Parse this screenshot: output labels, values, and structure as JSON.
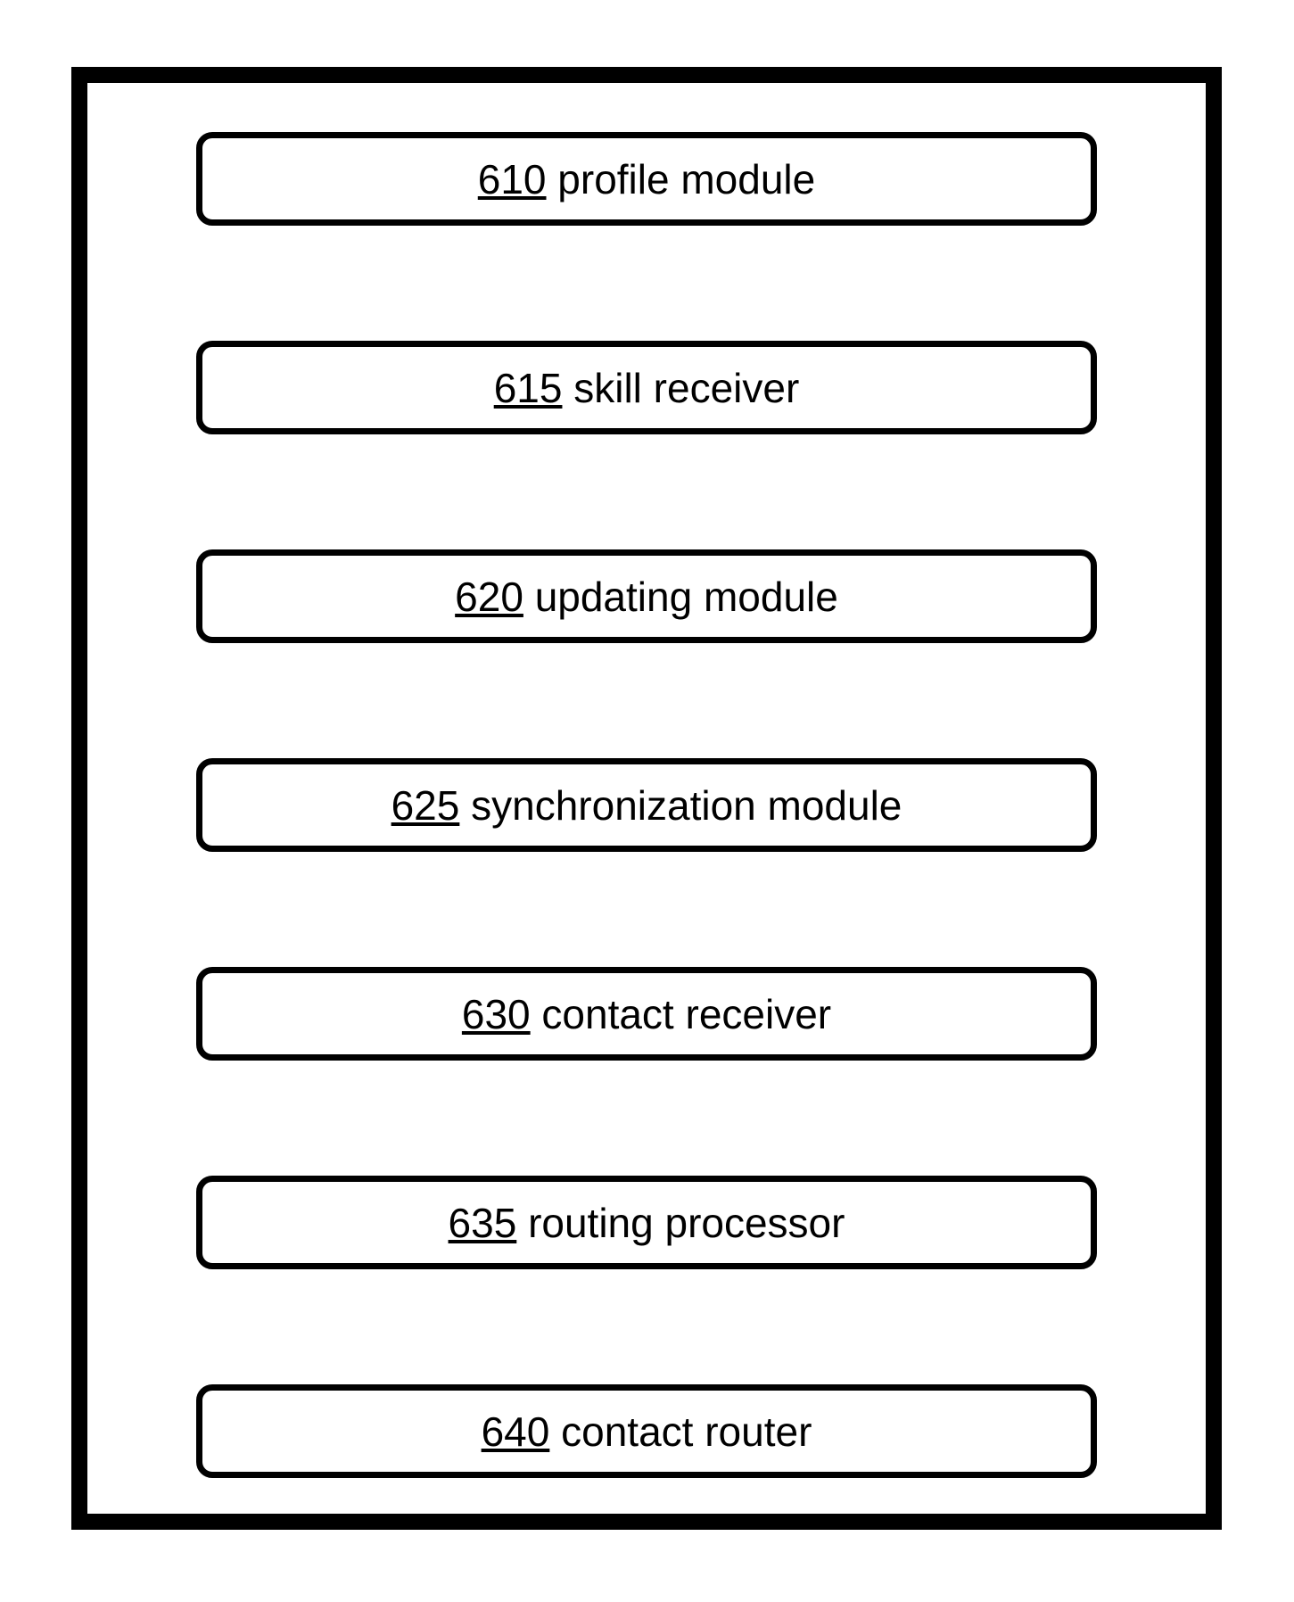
{
  "diagram": {
    "container": {
      "border_color": "#000000",
      "border_width": 18,
      "background_color": "#ffffff"
    },
    "module_box_style": {
      "border_color": "#000000",
      "border_width": 7,
      "border_radius": 18,
      "background_color": "#ffffff",
      "text_color": "#000000",
      "font_size": 46
    },
    "modules": [
      {
        "number": "610",
        "label": "profile module"
      },
      {
        "number": "615",
        "label": "skill receiver"
      },
      {
        "number": "620",
        "label": "updating module"
      },
      {
        "number": "625",
        "label": "synchronization module"
      },
      {
        "number": "630",
        "label": "contact receiver"
      },
      {
        "number": "635",
        "label": "routing processor"
      },
      {
        "number": "640",
        "label": "contact router"
      }
    ]
  }
}
